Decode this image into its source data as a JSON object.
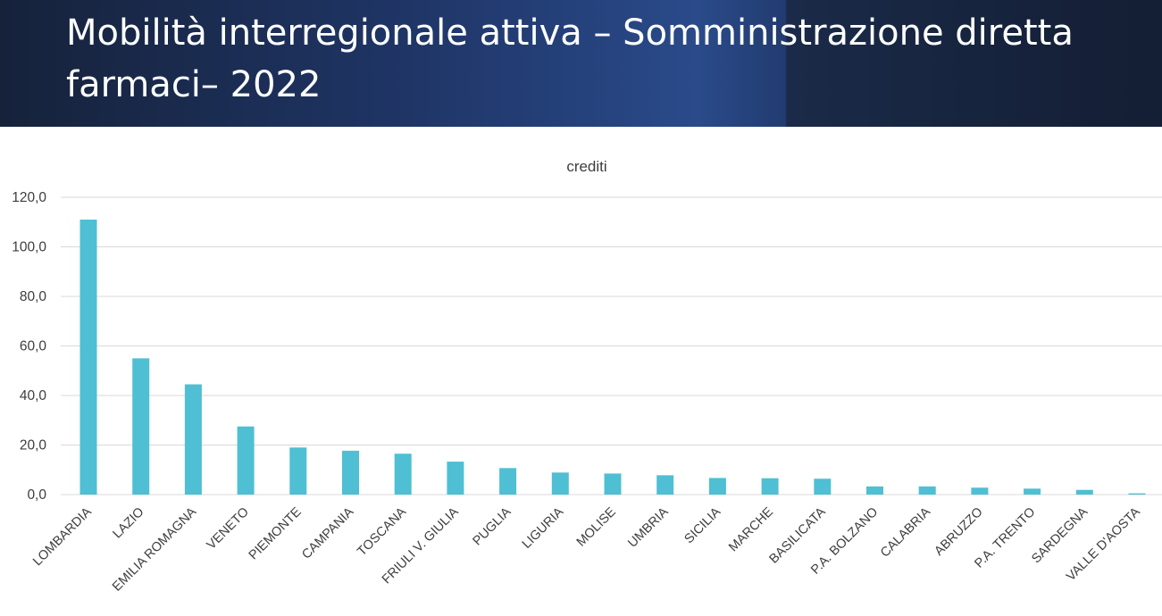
{
  "slide": {
    "title": "Mobilità interregionale attiva – Somministrazione diretta farmaci– 2022"
  },
  "colors": {
    "bar": "#4fbfd3",
    "grid": "#d9d9d9",
    "header_dark": "#16223a",
    "header_accent": "#2a4a8a"
  },
  "chart_data": {
    "type": "bar",
    "title": "crediti",
    "xlabel": "",
    "ylabel": "",
    "ylim": [
      0,
      120
    ],
    "yticks": [
      "0,0",
      "20,0",
      "40,0",
      "60,0",
      "80,0",
      "100,0",
      "120,0"
    ],
    "grid": true,
    "legend": "none",
    "categories": [
      "LOMBARDIA",
      "LAZIO",
      "EMILIA ROMAGNA",
      "VENETO",
      "PIEMONTE",
      "CAMPANIA",
      "TOSCANA",
      "FRIULI V. GIULIA",
      "PUGLIA",
      "LIGURIA",
      "MOLISE",
      "UMBRIA",
      "SICILIA",
      "MARCHE",
      "BASILICATA",
      "P.A. BOLZANO",
      "CALABRIA",
      "ABRUZZO",
      "P.A. TRENTO",
      "SARDEGNA",
      "VALLE D'AOSTA"
    ],
    "values": [
      111.0,
      55.0,
      44.5,
      27.5,
      19.0,
      17.7,
      16.5,
      13.3,
      10.7,
      8.9,
      8.5,
      7.8,
      6.7,
      6.6,
      6.4,
      3.3,
      3.3,
      2.8,
      2.4,
      1.9,
      0.5
    ]
  }
}
